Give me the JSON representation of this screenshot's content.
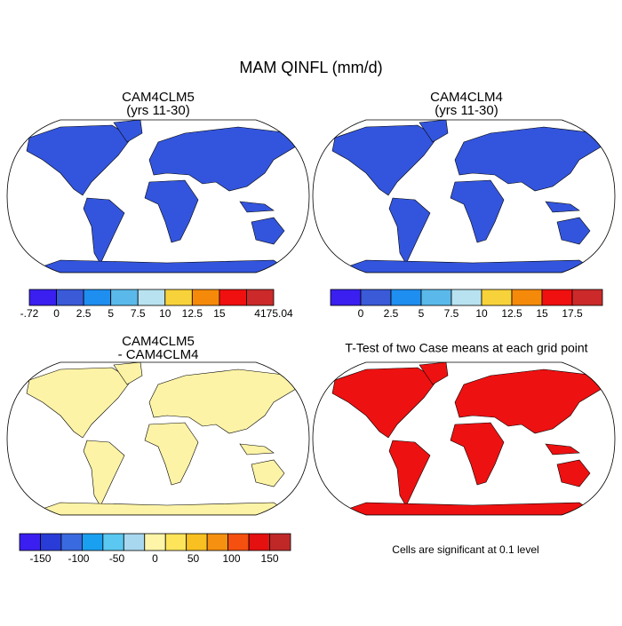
{
  "title": "MAM QINFL (mm/d)",
  "panels": [
    {
      "title": [
        "CAM4CLM5",
        "(yrs 11-30)"
      ],
      "land_color": "#3355dd"
    },
    {
      "title": [
        "CAM4CLM4",
        "(yrs 11-30)"
      ],
      "land_color": "#3355dd"
    },
    {
      "title": [
        "CAM4CLM5",
        "- CAM4CLM4"
      ],
      "land_color": "#fdf3a6"
    },
    {
      "title": [
        "T-Test of two Case means at each grid point"
      ],
      "land_color": "#ee1111"
    }
  ],
  "colorbars": [
    {
      "colors": [
        "#3a1ff0",
        "#3a5ad8",
        "#1e8ef0",
        "#5ab9ea",
        "#b8e2f0",
        "#f8d23a",
        "#f58a0a",
        "#f01010",
        "#cc2a2a"
      ],
      "labels": [
        "-.72",
        "0",
        "2.5",
        "5",
        "7.5",
        "10",
        "12.5",
        "15",
        null,
        "4175.04"
      ]
    },
    {
      "colors": [
        "#3a1ff0",
        "#3a5ad8",
        "#1e8ef0",
        "#5ab9ea",
        "#b8e2f0",
        "#f8d23a",
        "#f58a0a",
        "#f01010",
        "#cc2a2a"
      ],
      "labels": [
        null,
        "0",
        "2.5",
        "5",
        "7.5",
        "10",
        "12.5",
        "15",
        "17.5",
        null
      ]
    },
    {
      "colors": [
        "#3a1ff0",
        "#2a3cd8",
        "#3a6ae0",
        "#1aa0f0",
        "#5ac8f0",
        "#a8d8f0",
        "#fff5a8",
        "#fde45a",
        "#f8c020",
        "#f59010",
        "#f55010",
        "#e51010",
        "#c02828"
      ],
      "labels": [
        "-150",
        "-100",
        "-50",
        "0",
        "50",
        "100",
        "150"
      ]
    }
  ],
  "footnote": "Cells are significant at 0.1 level"
}
